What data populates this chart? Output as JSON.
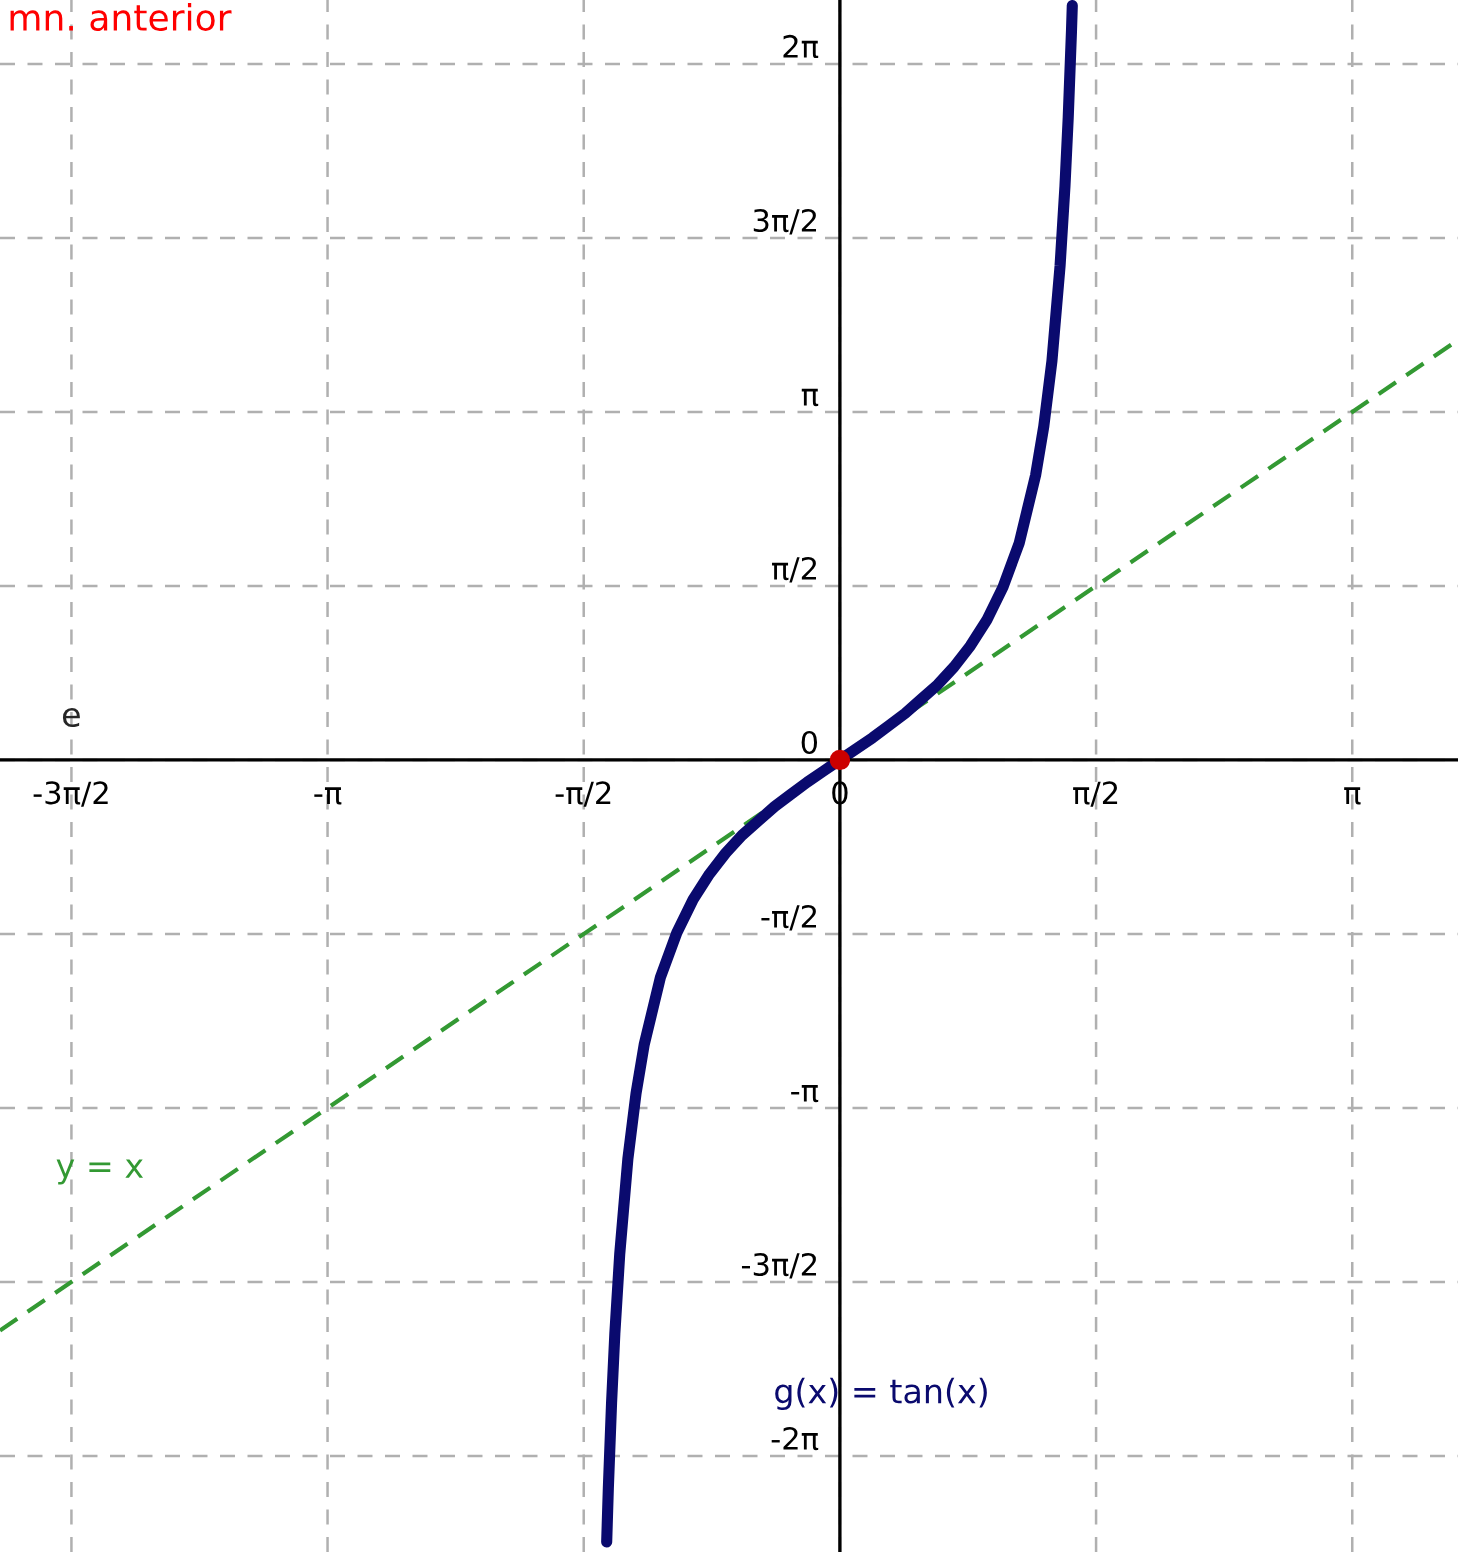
{
  "chart_data": {
    "type": "line",
    "annotations": [
      "mn. anterior",
      "e"
    ],
    "xlim": [
      -5.15,
      3.79
    ],
    "ylim": [
      -7.15,
      6.86
    ],
    "xticks": [
      {
        "value": -4.712,
        "label": "-3π/2"
      },
      {
        "value": -3.1416,
        "label": "-π"
      },
      {
        "value": -1.5708,
        "label": "-π/2"
      },
      0,
      {
        "value": 1.5708,
        "label": "π/2"
      },
      {
        "value": 3.1416,
        "label": "π"
      }
    ],
    "yticks": [
      {
        "value": -6.2832,
        "label": "-2π"
      },
      {
        "value": -4.712,
        "label": "-3π/2"
      },
      {
        "value": -3.1416,
        "label": "-π"
      },
      {
        "value": -1.5708,
        "label": "-π/2"
      },
      0,
      {
        "value": 1.5708,
        "label": "π/2"
      },
      {
        "value": 3.1416,
        "label": "π"
      },
      {
        "value": 4.712,
        "label": "3π/2"
      },
      {
        "value": 6.2832,
        "label": "2π"
      }
    ],
    "grid": true,
    "legend": false,
    "series": [
      {
        "name": "y = x",
        "color": "#339933",
        "line_style": "dashed",
        "x": [
          -5.15,
          3.79
        ],
        "values": [
          -5.15,
          3.79
        ]
      },
      {
        "name": "g(x) = tan(x)",
        "color": "#0a0a6e",
        "line_style": "solid",
        "x": [
          -1.43,
          -1.42,
          -1.4,
          -1.38,
          -1.35,
          -1.3,
          -1.25,
          -1.2,
          -1.1,
          -1.0,
          -0.9,
          -0.8,
          -0.7,
          -0.6,
          -0.5,
          -0.4,
          -0.3,
          -0.2,
          -0.1,
          0,
          0.1,
          0.2,
          0.3,
          0.4,
          0.5,
          0.6,
          0.7,
          0.8,
          0.9,
          1.0,
          1.1,
          1.2,
          1.25,
          1.3,
          1.35,
          1.38,
          1.4,
          1.42,
          1.425
        ],
        "values": [
          -7.06,
          -6.58,
          -5.8,
          -5.18,
          -4.46,
          -3.6,
          -3.01,
          -2.57,
          -1.96,
          -1.56,
          -1.26,
          -1.03,
          -0.84,
          -0.68,
          -0.55,
          -0.42,
          -0.31,
          -0.2,
          -0.1,
          0,
          0.1,
          0.2,
          0.31,
          0.42,
          0.55,
          0.68,
          0.84,
          1.03,
          1.26,
          1.56,
          1.96,
          2.57,
          3.01,
          3.6,
          4.46,
          5.18,
          5.8,
          6.58,
          6.81
        ]
      },
      {
        "type": "scatter",
        "color": "#cc0000",
        "marker": "circle",
        "x": [
          0
        ],
        "values": [
          0
        ]
      }
    ]
  }
}
